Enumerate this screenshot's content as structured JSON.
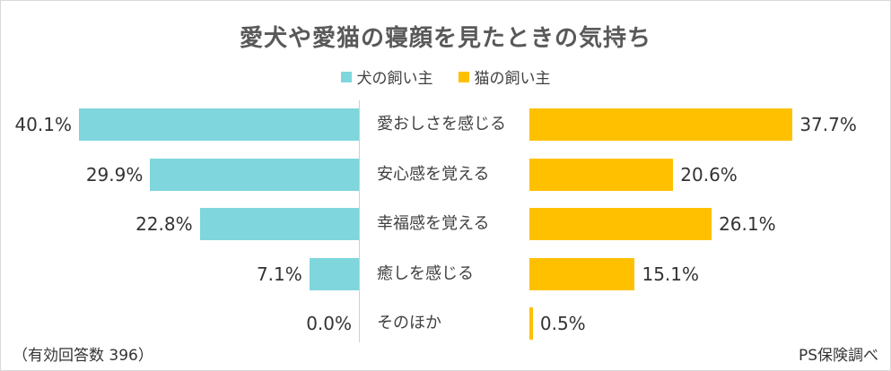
{
  "chart_data": {
    "type": "bar",
    "title": "愛犬や愛猫の寝顔を見たときの気持ち",
    "categories": [
      "愛おしさを感じる",
      "安心感を覚える",
      "幸福感を覚える",
      "癒しを感じる",
      "そのほか"
    ],
    "series": [
      {
        "name": "犬の飼い主",
        "color": "#7fd6dc",
        "values": [
          40.1,
          29.9,
          22.8,
          7.1,
          0.0
        ],
        "labels": [
          "40.1%",
          "29.9%",
          "22.8%",
          "7.1%",
          "0.0%"
        ]
      },
      {
        "name": "猫の飼い主",
        "color": "#ffc000",
        "values": [
          37.7,
          20.6,
          26.1,
          15.1,
          0.5
        ],
        "labels": [
          "37.7%",
          "20.6%",
          "26.1%",
          "15.1%",
          "0.5%"
        ]
      }
    ],
    "xlim": [
      0,
      40.1
    ],
    "unit": "%"
  },
  "footer": {
    "note": "（有効回答数 396）",
    "source": "PS保険調べ"
  }
}
